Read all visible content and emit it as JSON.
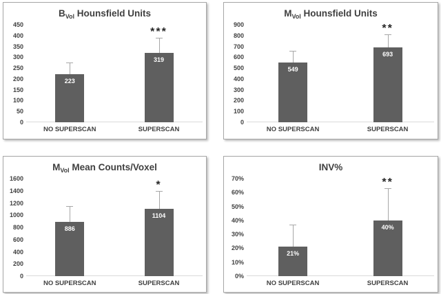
{
  "figure": {
    "description_note": "2x2 grid of gray bar charts comparing NO SUPERSCAN vs SUPERSCAN groups with error bars and significance stars"
  },
  "colors": {
    "bar_fill": "#5f5f5f",
    "error_bar": "#a6a6a6",
    "axis_text": "#3f3f3f",
    "value_text": "#ffffff",
    "star": "#262626",
    "baseline": "#d9d9d9",
    "panel_border": "#a6a6a6",
    "panel_bg": "#ffffff"
  },
  "chart_data": [
    {
      "type": "bar",
      "title": {
        "prefix": "B",
        "subscript": "Vol",
        "rest": " Hounsfield Units"
      },
      "categories": [
        "NO SUPERSCAN",
        "SUPERSCAN"
      ],
      "values": [
        223,
        319
      ],
      "value_labels": [
        "223",
        "319"
      ],
      "error_top": [
        275,
        390
      ],
      "significance": "***",
      "significance_on": "SUPERSCAN",
      "xlabel": "",
      "ylabel": "",
      "ylim": [
        0,
        450
      ],
      "yticks": [
        0,
        50,
        100,
        150,
        200,
        250,
        300,
        350,
        400,
        450
      ],
      "ytick_labels": [
        "0",
        "50",
        "100",
        "150",
        "200",
        "250",
        "300",
        "350",
        "400",
        "450"
      ],
      "grid": "off",
      "legend": "none"
    },
    {
      "type": "bar",
      "title": {
        "prefix": "M",
        "subscript": "Vol",
        "rest": " Hounsfield Units"
      },
      "categories": [
        "NO SUPERSCAN",
        "SUPERSCAN"
      ],
      "values": [
        549,
        693
      ],
      "value_labels": [
        "549",
        "693"
      ],
      "error_top": [
        660,
        810
      ],
      "significance": "**",
      "significance_on": "SUPERSCAN",
      "xlabel": "",
      "ylabel": "",
      "ylim": [
        0,
        900
      ],
      "yticks": [
        0,
        100,
        200,
        300,
        400,
        500,
        600,
        700,
        800,
        900
      ],
      "ytick_labels": [
        "0",
        "100",
        "200",
        "300",
        "400",
        "500",
        "600",
        "700",
        "800",
        "900"
      ],
      "grid": "off",
      "legend": "none"
    },
    {
      "type": "bar",
      "title": {
        "prefix": "M",
        "subscript": "Vol",
        "rest": " Mean Counts/Voxel"
      },
      "categories": [
        "NO SUPERSCAN",
        "SUPERSCAN"
      ],
      "values": [
        886,
        1104
      ],
      "value_labels": [
        "886",
        "1104"
      ],
      "error_top": [
        1145,
        1400
      ],
      "significance": "*",
      "significance_on": "SUPERSCAN",
      "xlabel": "",
      "ylabel": "",
      "ylim": [
        0,
        1600
      ],
      "yticks": [
        0,
        200,
        400,
        600,
        800,
        1000,
        1200,
        1400,
        1600
      ],
      "ytick_labels": [
        "0",
        "200",
        "400",
        "600",
        "800",
        "1000",
        "1200",
        "1400",
        "1600"
      ],
      "grid": "off",
      "legend": "none"
    },
    {
      "type": "bar",
      "title": {
        "prefix": "INV%",
        "subscript": "",
        "rest": ""
      },
      "categories": [
        "NO SUPERSCAN",
        "SUPERSCAN"
      ],
      "values": [
        21,
        40
      ],
      "value_labels": [
        "21%",
        "40%"
      ],
      "error_top": [
        37,
        63
      ],
      "significance": "**",
      "significance_on": "SUPERSCAN",
      "xlabel": "",
      "ylabel": "",
      "ylim": [
        0,
        70
      ],
      "yticks": [
        0,
        10,
        20,
        30,
        40,
        50,
        60,
        70
      ],
      "ytick_labels": [
        "0%",
        "10%",
        "20%",
        "30%",
        "40%",
        "50%",
        "60%",
        "70%"
      ],
      "grid": "off",
      "legend": "none"
    }
  ]
}
